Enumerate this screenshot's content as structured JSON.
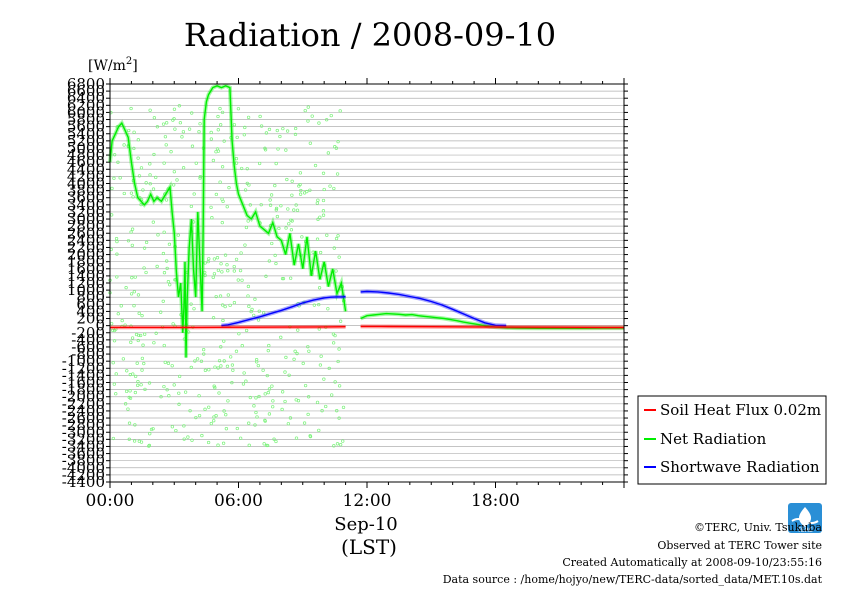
{
  "chart_data": {
    "type": "line",
    "title": "Radiation / 2008-09-10",
    "ylabel": "[W/m2]",
    "ylabel_base": "[W/m",
    "ylabel_sup": "2",
    "ylabel_end": "]",
    "xlabel_date": "Sep-10",
    "xlabel_unit": "(LST)",
    "ylim": [
      -4400,
      6800
    ],
    "xlim": [
      0,
      24
    ],
    "grid": true,
    "legend_position": "bottom-right",
    "y_ticks": [
      6800,
      6600,
      6400,
      6200,
      6000,
      5800,
      5600,
      5400,
      5200,
      5000,
      4800,
      4600,
      4400,
      4200,
      4000,
      3800,
      3600,
      3400,
      3200,
      3000,
      2800,
      2600,
      2400,
      2200,
      2000,
      1800,
      1600,
      1400,
      1200,
      1000,
      800,
      600,
      400,
      200,
      0,
      -200,
      -400,
      -600,
      -800,
      -1000,
      -1200,
      -1400,
      -1600,
      -1800,
      -2000,
      -2200,
      -2400,
      -2600,
      -2800,
      -3000,
      -3200,
      -3400,
      -3600,
      -3800,
      -4000,
      -4200,
      -4400
    ],
    "x_ticks": [
      {
        "value": 0,
        "label": "00:00"
      },
      {
        "value": 6,
        "label": "06:00"
      },
      {
        "value": 12,
        "label": "12:00"
      },
      {
        "value": 18,
        "label": "18:00"
      }
    ],
    "series": [
      {
        "name": "Soil Heat Flux 0.02m",
        "color": "#ff0000",
        "segments": [
          {
            "x": [
              0,
              2,
              4,
              6,
              8,
              10,
              11
            ],
            "y": [
              -50,
              -50,
              -50,
              -45,
              -40,
              -35,
              -30
            ]
          },
          {
            "x": [
              11.7,
              13,
              15,
              17,
              19,
              21,
              23,
              24
            ],
            "y": [
              -20,
              -25,
              -30,
              -35,
              -40,
              -45,
              -50,
              -50
            ]
          }
        ]
      },
      {
        "name": "Net Radiation",
        "color": "#00ee00",
        "segments": [
          {
            "x": [
              0,
              0.1,
              0.25,
              0.4,
              0.55,
              0.7,
              0.85,
              1.0,
              1.15,
              1.3,
              1.45,
              1.6,
              1.75,
              1.9,
              2.05,
              2.2,
              2.4,
              2.6,
              2.8,
              2.9,
              3.0,
              3.1,
              3.2,
              3.3,
              3.4,
              3.45,
              3.5,
              3.55,
              3.6,
              3.7,
              3.8,
              3.9,
              4.0,
              4.1,
              4.2,
              4.3,
              4.35,
              4.4,
              4.5,
              4.6,
              4.8,
              5.0,
              5.2,
              5.4,
              5.6,
              5.7,
              5.8,
              5.9,
              6.0,
              6.2,
              6.4,
              6.6,
              6.8,
              7.0,
              7.2,
              7.4,
              7.6,
              7.8,
              8.0,
              8.2,
              8.4,
              8.6,
              8.8,
              9.0,
              9.2,
              9.4,
              9.6,
              9.8,
              10.0,
              10.2,
              10.4,
              10.6,
              10.8,
              11.0
            ],
            "y": [
              4600,
              5200,
              5400,
              5600,
              5700,
              5500,
              5300,
              4600,
              4000,
              3600,
              3500,
              3400,
              3500,
              3700,
              3500,
              3600,
              3500,
              3700,
              3900,
              3200,
              2600,
              1500,
              800,
              1200,
              -200,
              500,
              1800,
              -900,
              700,
              2200,
              3000,
              1600,
              800,
              3200,
              1800,
              400,
              2800,
              5800,
              6300,
              6500,
              6700,
              6750,
              6700,
              6750,
              6700,
              5200,
              4500,
              4000,
              3700,
              3400,
              3100,
              3000,
              3200,
              2800,
              2700,
              2600,
              2900,
              2500,
              2400,
              2000,
              2600,
              1700,
              2300,
              1600,
              2500,
              1400,
              2100,
              1300,
              1800,
              1100,
              1600,
              900,
              1200,
              400
            ]
          },
          {
            "x": [
              11.7,
              12.0,
              12.3,
              12.6,
              12.9,
              13.2,
              13.5,
              13.8,
              14.1,
              14.4,
              14.7,
              15.0,
              15.3,
              15.6,
              15.9,
              16.2,
              16.5,
              16.8,
              17.1,
              17.4,
              17.7,
              18.0,
              18.5,
              19,
              20,
              21,
              22,
              23,
              24
            ],
            "y": [
              200,
              280,
              300,
              320,
              340,
              330,
              320,
              300,
              310,
              280,
              260,
              240,
              220,
              200,
              170,
              140,
              100,
              70,
              40,
              10,
              -20,
              -40,
              -60,
              -70,
              -75,
              -75,
              -75,
              -70,
              -70
            ]
          }
        ],
        "scatter_band": {
          "x_from": 0,
          "x_to": 11,
          "y_min": -3400,
          "y_max": 6200
        }
      },
      {
        "name": "Shortwave Radiation",
        "color": "#0000ff",
        "segments": [
          {
            "x": [
              5.2,
              5.5,
              6.0,
              6.5,
              7.0,
              7.5,
              8.0,
              8.5,
              9.0,
              9.5,
              10.0,
              10.3,
              10.6,
              10.9,
              11.0
            ],
            "y": [
              0,
              20,
              90,
              170,
              250,
              340,
              430,
              530,
              640,
              720,
              780,
              800,
              810,
              810,
              820
            ]
          },
          {
            "x": [
              11.7,
              12.0,
              12.5,
              13.0,
              13.5,
              14.0,
              14.5,
              15.0,
              15.5,
              16.0,
              16.5,
              17.0,
              17.5,
              18.0,
              18.5
            ],
            "y": [
              950,
              960,
              950,
              920,
              880,
              820,
              760,
              680,
              580,
              460,
              330,
              200,
              80,
              10,
              0
            ]
          }
        ]
      }
    ]
  },
  "footer": {
    "copyright": "©TERC, Univ. Tsukuba",
    "observed": "Observed at TERC Tower site",
    "created": "Created Automatically at 2008-09-10/23:55:16",
    "source": "Data source : /home/hojyo/new/TERC-data/sorted_data/MET.10s.dat",
    "logo_text": "TERC"
  },
  "colors": {
    "soil": "#ff0000",
    "net": "#00ee00",
    "shortwave": "#0000ff",
    "logo": "#2a8fd6"
  }
}
